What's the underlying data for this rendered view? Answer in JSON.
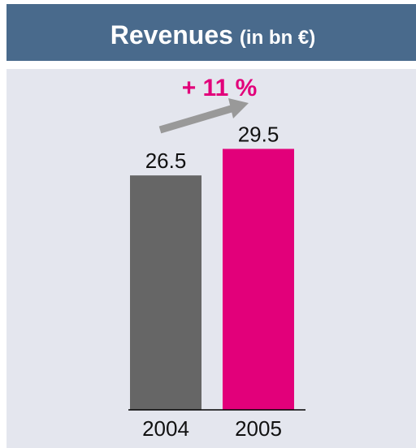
{
  "chart_data": {
    "type": "bar",
    "title": "Revenues",
    "title_unit": "(in bn €)",
    "annotation": "+ 11 %",
    "categories": [
      "2004",
      "2005"
    ],
    "values": [
      26.5,
      29.5
    ],
    "colors": [
      "#666666",
      "#e2007a"
    ]
  }
}
